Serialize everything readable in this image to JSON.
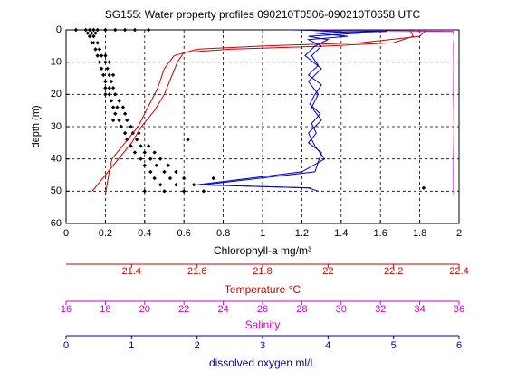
{
  "chart_data": {
    "type": "scatter",
    "title": "SG155: Water property profiles 090210T0506-090210T0658 UTC",
    "ylabel": "depth (m)",
    "ylim": [
      0,
      60
    ],
    "yticks": [
      0,
      10,
      20,
      30,
      40,
      50,
      60
    ],
    "y_inverted": true,
    "grid": true,
    "xlabel": "Chlorophyll-a mg/m³",
    "xlim": [
      0,
      2
    ],
    "xticks": [
      0,
      0.2,
      0.4,
      0.6,
      0.8,
      1,
      1.2,
      1.4,
      1.6,
      1.8,
      2
    ],
    "xcolor": "#000000",
    "x2label": "Temperature °C",
    "x2lim": [
      21.2,
      22.4
    ],
    "x2ticks": [
      21.4,
      21.6,
      21.8,
      22,
      22.2,
      22.4
    ],
    "x2color": "#cc0000",
    "x3label": "Salinity",
    "x3lim": [
      16,
      36
    ],
    "x3ticks": [
      16,
      18,
      20,
      22,
      24,
      26,
      28,
      30,
      32,
      34,
      36
    ],
    "x3color": "#cc00cc",
    "x4label": "dissolved oxygen ml/L",
    "x4lim": [
      0,
      6
    ],
    "x4ticks": [
      0,
      1,
      2,
      3,
      4,
      5,
      6
    ],
    "x4color": "#000099",
    "series": [
      {
        "type": "scatter",
        "axis": "x",
        "color": "#000000",
        "x": [
          0.1,
          0.12,
          0.14,
          0.16,
          0.2,
          0.25,
          0.3,
          0.35,
          0.42,
          0.05,
          0.11,
          0.13,
          0.15,
          0.12,
          0.14,
          0.14,
          0.16,
          0.13,
          0.15,
          0.17,
          0.16,
          0.18,
          0.2,
          0.17,
          0.2,
          0.22,
          0.18,
          0.21,
          0.19,
          0.22,
          0.24,
          0.2,
          0.23,
          0.2,
          0.24,
          0.22,
          0.22,
          0.25,
          0.2,
          0.23,
          0.27,
          0.24,
          0.26,
          0.29,
          0.25,
          0.3,
          0.27,
          0.31,
          0.24,
          0.28,
          0.33,
          0.3,
          0.34,
          0.37,
          0.31,
          0.36,
          0.62,
          0.33,
          0.38,
          0.42,
          0.35,
          0.4,
          0.45,
          0.38,
          0.43,
          0.48,
          0.4,
          0.46,
          0.52,
          0.43,
          0.5,
          0.56,
          0.45,
          0.53,
          0.6,
          0.75,
          0.48,
          0.56,
          0.65,
          0.4,
          0.5,
          0.6,
          0.7,
          1.82
        ],
        "y": [
          0,
          0,
          0,
          0,
          0,
          0,
          0,
          0,
          0,
          0,
          1,
          1,
          1,
          2,
          2,
          4,
          4,
          4,
          6,
          6,
          8,
          8,
          8,
          10,
          10,
          10,
          12,
          12,
          14,
          14,
          14,
          16,
          16,
          18,
          18,
          18,
          20,
          20,
          20,
          22,
          22,
          24,
          24,
          24,
          26,
          26,
          28,
          28,
          28,
          30,
          30,
          32,
          32,
          32,
          34,
          34,
          34,
          36,
          36,
          36,
          38,
          38,
          38,
          40,
          40,
          40,
          42,
          42,
          42,
          44,
          44,
          44,
          46,
          46,
          46,
          46,
          48,
          48,
          48,
          50,
          50,
          50,
          50,
          49
        ]
      },
      {
        "type": "line",
        "axis": "x2",
        "color": "#cc0000",
        "x": [
          22.25,
          22.26,
          22.2,
          22.0,
          21.7,
          21.56,
          21.54,
          21.52,
          21.5,
          21.47,
          21.43,
          21.4,
          21.36,
          21.32,
          21.28
        ],
        "y": [
          0,
          2,
          4,
          5,
          6,
          7,
          10,
          15,
          20,
          25,
          30,
          35,
          40,
          45,
          50
        ]
      },
      {
        "type": "line",
        "axis": "x2",
        "color": "#cc0000",
        "x": [
          22.3,
          22.28,
          22.1,
          21.8,
          21.6,
          21.53,
          21.5,
          21.48,
          21.45,
          21.42,
          21.38,
          21.34,
          21.33,
          21.32
        ],
        "y": [
          0,
          2,
          4,
          5,
          6,
          8,
          12,
          18,
          24,
          30,
          35,
          40,
          45,
          51
        ]
      },
      {
        "type": "line",
        "axis": "x3",
        "color": "#cc00cc",
        "x": [
          28.8,
          35.7,
          35.75,
          35.72,
          35.73,
          35.72,
          35.74,
          35.72,
          35.72,
          35.73
        ],
        "y": [
          0,
          0.5,
          2,
          5,
          10,
          20,
          30,
          40,
          48,
          51
        ]
      },
      {
        "type": "line",
        "axis": "x4",
        "color": "#0000cc",
        "x": [
          3.4,
          4.9,
          3.8,
          4.3,
          3.7,
          3.9,
          3.75,
          3.85,
          3.7,
          3.9,
          3.8,
          3.72,
          3.88,
          3.75,
          3.82,
          3.7,
          3.9,
          3.8,
          2.1,
          3.7,
          3.85
        ],
        "y": [
          0,
          0.5,
          1,
          2,
          3,
          5,
          8,
          11,
          14,
          17,
          20,
          23,
          26,
          29,
          32,
          35,
          38,
          44,
          48,
          49,
          50
        ]
      },
      {
        "type": "line",
        "axis": "x4",
        "color": "#0000cc",
        "x": [
          3.6,
          4.5,
          3.7,
          4.0,
          3.8,
          3.65,
          3.9,
          3.7,
          3.85,
          3.75,
          3.9,
          3.7,
          3.8,
          3.95,
          3.6,
          2.0,
          3.75
        ],
        "y": [
          0,
          1,
          2,
          3,
          5,
          8,
          12,
          16,
          20,
          24,
          28,
          32,
          36,
          40,
          44,
          48,
          49
        ]
      }
    ]
  }
}
